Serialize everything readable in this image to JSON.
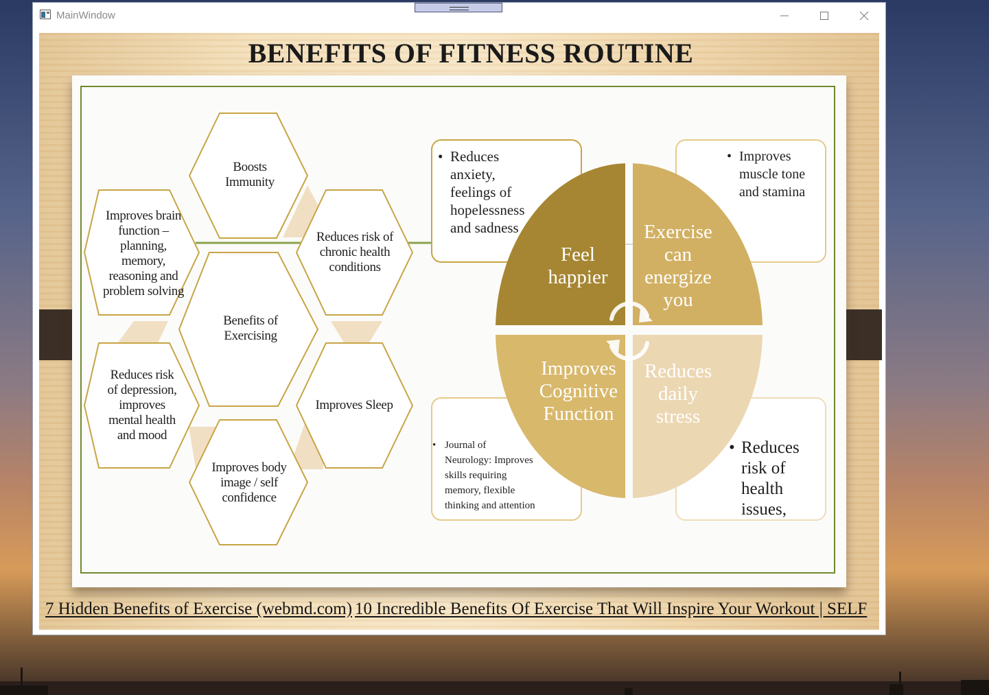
{
  "window": {
    "title": "MainWindow"
  },
  "slide": {
    "title": "BENEFITS OF FITNESS ROUTINE",
    "hexagons": {
      "center": "Benefits of Exercising",
      "immunity": "Boosts Immunity",
      "chronic": "Reduces risk of chronic health conditions",
      "brain": "Improves brain function – planning, memory, reasoning and problem solving",
      "depression": "Reduces risk of depression, improves mental health and mood",
      "sleep": "Improves Sleep",
      "body_image": "Improves body image / self confidence"
    },
    "quadrants": {
      "top_left": "Feel happier",
      "top_right": "Exercise can energize you",
      "bottom_left": "Improves Cognitive Function",
      "bottom_right": "Reduces daily stress"
    },
    "boxes": {
      "anxiety": "Reduces anxiety, feelings of hopelessness and sadness",
      "muscle": "Improves muscle tone and stamina",
      "neurology": "Journal of Neurology: Improves skills requiring memory, flexible thinking and attention",
      "health": "Reduces risk of health issues,"
    },
    "colors": {
      "dark_gold": "#a68632",
      "gold": "#d2b063",
      "light_gold": "#e9d4a6",
      "hex_outline": "#c8a445",
      "frame_green": "#6f8a2c"
    }
  },
  "links": {
    "link1": "7 Hidden Benefits of Exercise (webmd.com)",
    "link2": "10 Incredible Benefits Of Exercise That Will Inspire Your Workout | SELF"
  }
}
